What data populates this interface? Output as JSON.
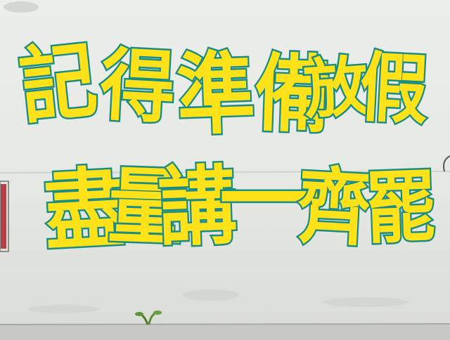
{
  "graffiti": {
    "line1": [
      "記",
      "得",
      "準",
      "備",
      "放",
      "假"
    ],
    "line2": [
      "盡",
      "量",
      "講",
      "一",
      "齊",
      "罷"
    ]
  },
  "colors": {
    "wall": "#e9ebe8",
    "fill": "#ffe21a",
    "outline": "#1c8f86",
    "ground": "#c7c8c4"
  }
}
